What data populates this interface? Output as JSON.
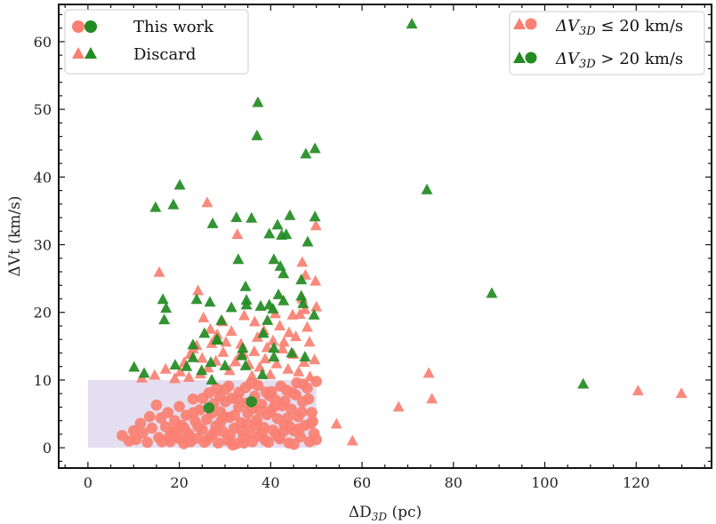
{
  "chart_data": {
    "type": "scatter",
    "xlabel": "ΔD3D (pc)",
    "ylabel": "ΔVt (km/s)",
    "xlim": [
      -6.4,
      136.5
    ],
    "ylim": [
      -3,
      65.5
    ],
    "xticks": [
      0,
      20,
      40,
      60,
      80,
      100,
      120
    ],
    "yticks": [
      0,
      10,
      20,
      30,
      40,
      50,
      60
    ],
    "grid": false,
    "colors": {
      "low": "#fa8072",
      "high": "#228b22",
      "region": "#e4dff0"
    },
    "shaded_region": {
      "x": [
        0,
        50
      ],
      "y": [
        0,
        10
      ]
    },
    "legend_marker": {
      "position": "top-left",
      "entries": [
        {
          "label": "This work",
          "marker": "circle"
        },
        {
          "label": "Discard",
          "marker": "triangle"
        }
      ]
    },
    "legend_color": {
      "position": "top-right",
      "entries": [
        {
          "label_prefix": "ΔV",
          "label_sub": "3D",
          "label_suffix": " ≤ 20 km/s",
          "color": "low"
        },
        {
          "label_prefix": "ΔV",
          "label_sub": "3D",
          "label_suffix": " > 20 km/s",
          "color": "high"
        }
      ]
    },
    "series": [
      {
        "marker": "circle",
        "color": "low",
        "points": [
          [
            7.5,
            1.8
          ],
          [
            9,
            1
          ],
          [
            10,
            2.5
          ],
          [
            10.5,
            1.2
          ],
          [
            11.5,
            3.6
          ],
          [
            12,
            2.2
          ],
          [
            13,
            0.8
          ],
          [
            13.5,
            4.6
          ],
          [
            14,
            2.9
          ],
          [
            15,
            6.3
          ],
          [
            15.5,
            1.5
          ],
          [
            16,
            4.4
          ],
          [
            17,
            3.1
          ],
          [
            17.5,
            5.2
          ],
          [
            18,
            0.9
          ],
          [
            18.5,
            2.3
          ],
          [
            19,
            4
          ],
          [
            19.5,
            1.6
          ],
          [
            20,
            6.1
          ],
          [
            20.5,
            3.3
          ],
          [
            21,
            0.6
          ],
          [
            21.5,
            4.8
          ],
          [
            22,
            2.1
          ],
          [
            22.5,
            0.9
          ],
          [
            23,
            7.2
          ],
          [
            23.5,
            3.9
          ],
          [
            24,
            1.4
          ],
          [
            24.5,
            5.6
          ],
          [
            25,
            2.7
          ],
          [
            25.5,
            0.8
          ],
          [
            26,
            4.2
          ],
          [
            26.5,
            8.1
          ],
          [
            27,
            1.8
          ],
          [
            27.5,
            6.5
          ],
          [
            28,
            3.2
          ],
          [
            28.5,
            0.7
          ],
          [
            29,
            5.3
          ],
          [
            29.5,
            2.4
          ],
          [
            30,
            8.6
          ],
          [
            30.5,
            1.1
          ],
          [
            31,
            4.5
          ],
          [
            31.5,
            7.3
          ],
          [
            32,
            2.9
          ],
          [
            32.5,
            0.6
          ],
          [
            33,
            6
          ],
          [
            33.5,
            3.7
          ],
          [
            34,
            1.5
          ],
          [
            34.5,
            8.9
          ],
          [
            35,
            5.1
          ],
          [
            35.5,
            2.2
          ],
          [
            36,
            0.9
          ],
          [
            36.5,
            7.6
          ],
          [
            37,
            4.1
          ],
          [
            37.5,
            1.7
          ],
          [
            38,
            6.4
          ],
          [
            38.5,
            3
          ],
          [
            39,
            8.2
          ],
          [
            39.5,
            0.8
          ],
          [
            40,
            5.4
          ],
          [
            40.5,
            2.6
          ],
          [
            41,
            7.1
          ],
          [
            41.5,
            4.3
          ],
          [
            42,
            1.3
          ],
          [
            42.5,
            6.2
          ],
          [
            43,
            3.4
          ],
          [
            43.5,
            8.5
          ],
          [
            44,
            0.7
          ],
          [
            44.5,
            5.7
          ],
          [
            45,
            2.5
          ],
          [
            45.5,
            7.8
          ],
          [
            46,
            4.6
          ],
          [
            46.5,
            1.6
          ],
          [
            47,
            6.8
          ],
          [
            47.5,
            3.3
          ],
          [
            48,
            8.8
          ],
          [
            48.5,
            0.9
          ],
          [
            49,
            5.2
          ],
          [
            49.5,
            2.1
          ],
          [
            50,
            1.2
          ],
          [
            49.2,
            3.9
          ],
          [
            48.3,
            7.2
          ],
          [
            47.1,
            9.4
          ],
          [
            46.2,
            2.8
          ],
          [
            45.1,
            0.5
          ],
          [
            44.2,
            3.1
          ],
          [
            43.1,
            6.9
          ],
          [
            42.2,
            9.1
          ],
          [
            41.1,
            2
          ],
          [
            40.2,
            8.3
          ],
          [
            39.2,
            4.9
          ],
          [
            38.1,
            2.2
          ],
          [
            37.2,
            9.2
          ],
          [
            36.1,
            5.8
          ],
          [
            35.1,
            3.5
          ],
          [
            34.1,
            0.7
          ],
          [
            33.1,
            8.2
          ],
          [
            32.1,
            4.8
          ],
          [
            31.1,
            1.9
          ],
          [
            30.1,
            6.8
          ],
          [
            29.1,
            3.9
          ],
          [
            28.1,
            8.8
          ],
          [
            27.1,
            5.1
          ],
          [
            26.1,
            1.2
          ],
          [
            25.1,
            7.3
          ],
          [
            24.1,
            3.1
          ],
          [
            23.1,
            5.2
          ],
          [
            22.1,
            1.6
          ],
          [
            21.1,
            2.9
          ],
          [
            20.1,
            1.3
          ],
          [
            19.1,
            2.6
          ],
          [
            17.8,
            1.6
          ],
          [
            16.2,
            0.9
          ],
          [
            33.7,
            2.5
          ],
          [
            34.8,
            6.6
          ],
          [
            36.8,
            3.3
          ],
          [
            38.8,
            1.1
          ],
          [
            40.8,
            6.1
          ],
          [
            42.8,
            2.4
          ],
          [
            44.8,
            8.1
          ],
          [
            46.8,
            5.3
          ],
          [
            48.8,
            3.6
          ],
          [
            45.7,
            9.6
          ],
          [
            43.7,
            4.4
          ],
          [
            41.7,
            1.6
          ],
          [
            39.7,
            7.7
          ],
          [
            37.7,
            5.5
          ],
          [
            35.7,
            9.5
          ],
          [
            31.7,
            0.4
          ],
          [
            29.7,
            4.6
          ],
          [
            27.7,
            2.3
          ],
          [
            30.8,
            9.1
          ],
          [
            28.9,
            7.6
          ],
          [
            32.8,
            7.2
          ],
          [
            50,
            9.8
          ]
        ]
      },
      {
        "marker": "circle",
        "color": "high",
        "points": [
          [
            26.5,
            5.9
          ],
          [
            35.8,
            6.8
          ]
        ]
      },
      {
        "marker": "triangle",
        "color": "low",
        "points": [
          [
            15.6,
            25.9
          ],
          [
            26.1,
            36.2
          ],
          [
            32.7,
            31.5
          ],
          [
            49.9,
            32.8
          ],
          [
            46.9,
            27.4
          ],
          [
            24.1,
            23.2
          ],
          [
            46.9,
            22
          ],
          [
            47.5,
            20.4
          ],
          [
            46.4,
            19.7
          ],
          [
            48.5,
            15.6
          ],
          [
            45.5,
            16.4
          ],
          [
            44,
            17
          ],
          [
            42,
            18
          ],
          [
            40.5,
            15.8
          ],
          [
            38.5,
            17.3
          ],
          [
            36.5,
            18.6
          ],
          [
            34.2,
            19.5
          ],
          [
            31.4,
            17.2
          ],
          [
            29.5,
            18.6
          ],
          [
            28.3,
            16.7
          ],
          [
            27.1,
            15.4
          ],
          [
            25.3,
            19.2
          ],
          [
            23.8,
            15.1
          ],
          [
            22.4,
            13.8
          ],
          [
            21.1,
            12.6
          ],
          [
            20.2,
            11.2
          ],
          [
            19,
            10.2
          ],
          [
            11.8,
            10.3
          ],
          [
            14.6,
            10.7
          ],
          [
            17,
            11.6
          ],
          [
            23,
            14.6
          ],
          [
            25,
            13.2
          ],
          [
            26.3,
            11.8
          ],
          [
            28,
            12.8
          ],
          [
            29.6,
            14.1
          ],
          [
            31,
            11.4
          ],
          [
            32.3,
            12.7
          ],
          [
            33.5,
            15.3
          ],
          [
            35.2,
            12.3
          ],
          [
            36.4,
            14.2
          ],
          [
            37.6,
            11.9
          ],
          [
            38.8,
            13.1
          ],
          [
            39.9,
            10.8
          ],
          [
            41.3,
            12.4
          ],
          [
            42.6,
            14.6
          ],
          [
            43.8,
            11.6
          ],
          [
            45,
            13.8
          ],
          [
            46.1,
            11.2
          ],
          [
            47.3,
            12.6
          ],
          [
            48.6,
            10.5
          ],
          [
            49.6,
            13
          ],
          [
            48,
            17.8
          ],
          [
            44.8,
            19.6
          ],
          [
            42.9,
            15.6
          ],
          [
            41,
            19.8
          ],
          [
            39.2,
            14.8
          ],
          [
            37.1,
            16.3
          ],
          [
            35.9,
            10.6
          ],
          [
            34,
            13.9
          ],
          [
            30.2,
            15.6
          ],
          [
            26.8,
            17.5
          ],
          [
            24.6,
            10.9
          ],
          [
            22.1,
            10.4
          ],
          [
            49.8,
            24.6
          ],
          [
            47.6,
            25.5
          ],
          [
            33.2,
            13.6
          ],
          [
            50,
            20.8
          ],
          [
            74.6,
            11
          ],
          [
            75.3,
            7.2
          ],
          [
            68,
            6
          ],
          [
            57.9,
            1
          ],
          [
            54.4,
            3.5
          ],
          [
            120.4,
            8.4
          ],
          [
            129.9,
            8
          ]
        ]
      },
      {
        "marker": "triangle",
        "color": "high",
        "points": [
          [
            37.2,
            51
          ],
          [
            37,
            46.1
          ],
          [
            47.7,
            43.4
          ],
          [
            49.7,
            44.2
          ],
          [
            20.1,
            38.8
          ],
          [
            14.8,
            35.5
          ],
          [
            18.7,
            35.9
          ],
          [
            27.3,
            33.1
          ],
          [
            32.5,
            34
          ],
          [
            35.8,
            33.9
          ],
          [
            41.5,
            32.9
          ],
          [
            44.2,
            34.3
          ],
          [
            49.7,
            34.1
          ],
          [
            39.7,
            31.6
          ],
          [
            42.4,
            31.4
          ],
          [
            43.4,
            31.5
          ],
          [
            48.1,
            30.4
          ],
          [
            32.9,
            27.8
          ],
          [
            40.7,
            27.8
          ],
          [
            42.1,
            26.8
          ],
          [
            42.8,
            25.7
          ],
          [
            46.7,
            24.8
          ],
          [
            34.5,
            23.8
          ],
          [
            41.7,
            22.6
          ],
          [
            42.8,
            21.7
          ],
          [
            46.7,
            22.4
          ],
          [
            47.1,
            21.3
          ],
          [
            16.4,
            21.9
          ],
          [
            17.1,
            20.6
          ],
          [
            16.7,
            18.9
          ],
          [
            23.8,
            21.9
          ],
          [
            26.7,
            21.5
          ],
          [
            31.4,
            20.7
          ],
          [
            34.7,
            21.8
          ],
          [
            34.7,
            21.1
          ],
          [
            37.8,
            20.9
          ],
          [
            39.7,
            21.1
          ],
          [
            40.5,
            20.5
          ],
          [
            39.3,
            18.8
          ],
          [
            49.5,
            19.6
          ],
          [
            29.2,
            18.8
          ],
          [
            25.5,
            16.9
          ],
          [
            28.2,
            16
          ],
          [
            38.4,
            16.9
          ],
          [
            10.1,
            11.9
          ],
          [
            12.3,
            11
          ],
          [
            19.1,
            12.2
          ],
          [
            21.6,
            12
          ],
          [
            23,
            13.3
          ],
          [
            24.9,
            11.4
          ],
          [
            26.9,
            12.6
          ],
          [
            30,
            12.1
          ],
          [
            27.1,
            10
          ],
          [
            33.9,
            14.7
          ],
          [
            33.7,
            13.6
          ],
          [
            34.5,
            12.1
          ],
          [
            40.7,
            14.7
          ],
          [
            44.6,
            14
          ],
          [
            40.7,
            13.4
          ],
          [
            47.5,
            13.4
          ],
          [
            38.2,
            10.8
          ],
          [
            28.4,
            15.9
          ],
          [
            23,
            15.2
          ],
          [
            70.9,
            62.6
          ],
          [
            74.2,
            38.1
          ],
          [
            88.4,
            22.8
          ],
          [
            108.4,
            9.4
          ]
        ]
      }
    ]
  }
}
